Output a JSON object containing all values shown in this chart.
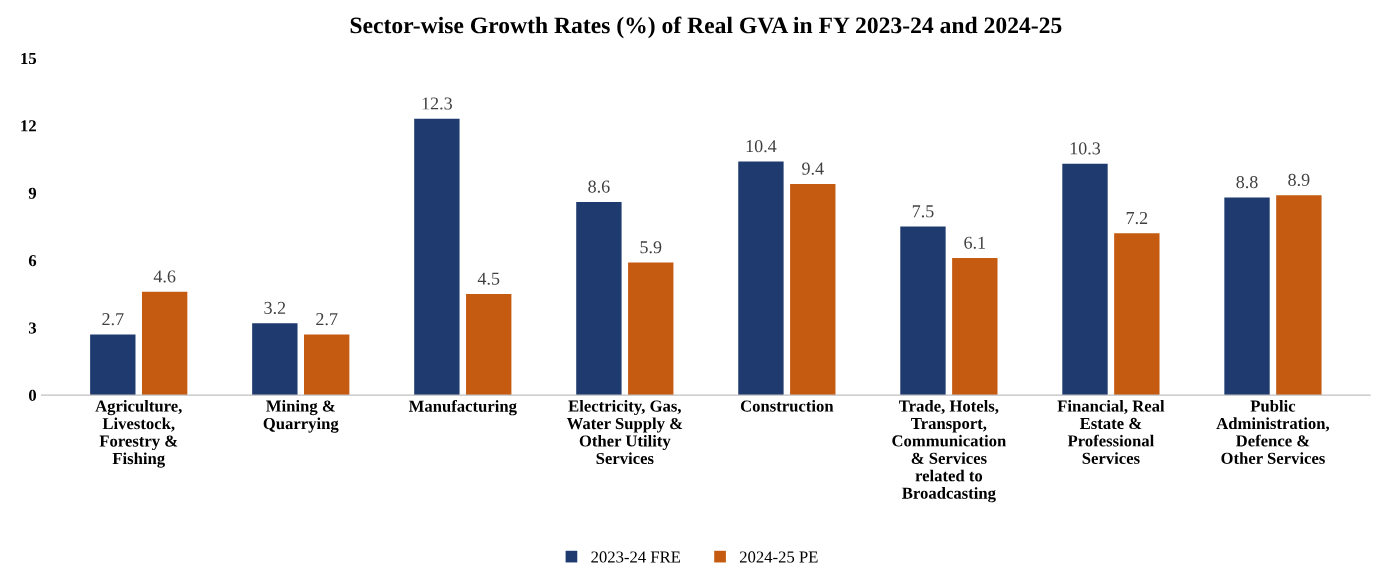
{
  "chart_data": {
    "type": "bar",
    "title": "Sector-wise Growth Rates (%) of Real GVA in FY 2023-24 and 2024-25",
    "categories": [
      "Agriculture,\nLivestock,\nForestry &\nFishing",
      "Mining &\nQuarrying",
      "Manufacturing",
      "Electricity, Gas,\nWater Supply &\nOther Utility\nServices",
      "Construction",
      "Trade, Hotels,\nTransport,\nCommunication\n& Services\nrelated to\nBroadcasting",
      "Financial, Real\nEstate &\nProfessional\nServices",
      "Public\nAdministration,\nDefence &\nOther Services"
    ],
    "series": [
      {
        "name": "2023-24 FRE",
        "color": "#1f3a6e",
        "values": [
          2.7,
          3.2,
          12.3,
          8.6,
          10.4,
          7.5,
          10.3,
          8.8
        ]
      },
      {
        "name": "2024-25 PE",
        "color": "#c55a11",
        "values": [
          4.6,
          2.7,
          4.5,
          5.9,
          9.4,
          6.1,
          7.2,
          8.9
        ]
      }
    ],
    "ylim": [
      0,
      15
    ],
    "yticks": [
      0,
      3,
      6,
      9,
      12,
      15
    ],
    "data_labels": true,
    "grid": false,
    "legend": "bottom"
  }
}
